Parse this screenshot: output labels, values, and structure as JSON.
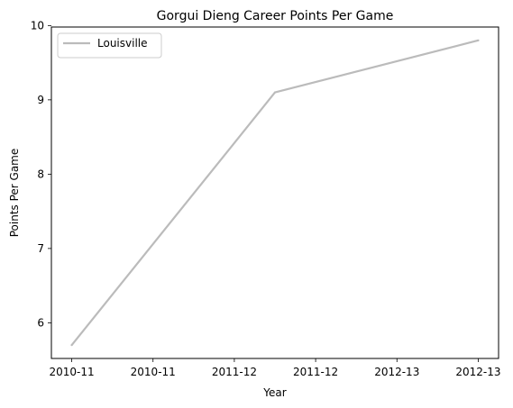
{
  "chart_data": {
    "type": "line",
    "title": "Gorgui Dieng Career Points Per Game",
    "xlabel": "Year",
    "ylabel": "Points Per Game",
    "x_tick_labels": [
      "2010-11",
      "2010-11",
      "2011-12",
      "2011-12",
      "2012-13",
      "2012-13"
    ],
    "x_tick_positions": [
      0,
      0.5,
      1,
      1.5,
      2,
      2.5
    ],
    "x_points": [
      0,
      1.25,
      2.5
    ],
    "xlim": [
      -0.125,
      2.625
    ],
    "y_ticks": [
      6,
      7,
      8,
      9,
      10
    ],
    "ylim": [
      5.52,
      9.98
    ],
    "series": [
      {
        "name": "Louisville",
        "x": [
          0,
          1.25,
          2.5
        ],
        "values": [
          5.7,
          9.1,
          9.8
        ],
        "color": "#bbbbbb"
      }
    ],
    "grid": false,
    "legend_position": "top-left"
  }
}
